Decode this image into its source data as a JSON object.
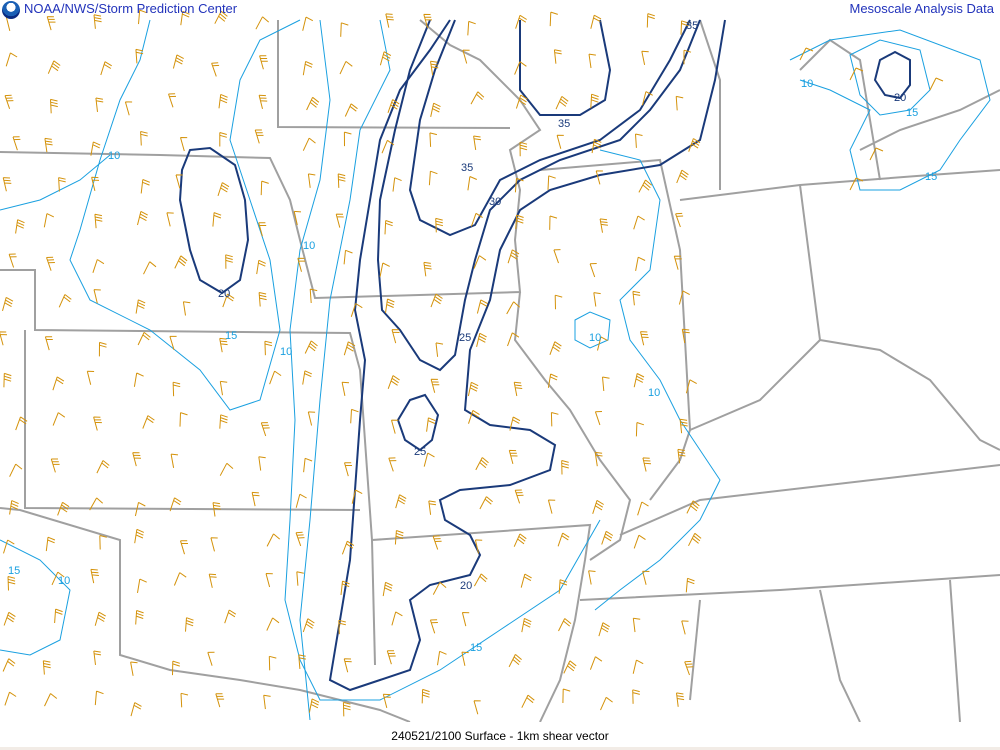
{
  "header": {
    "left_title": "NOAA/NWS/Storm Prediction Center",
    "right_title": "Mesoscale Analysis Data",
    "logo_icon": "noaa-logo-icon"
  },
  "footer": {
    "caption": "240521/2100 Surface - 1km shear vector"
  },
  "colors": {
    "strong_contour": "#1a3a7a",
    "weak_contour": "#1aa0e0",
    "barb": "#d4920a",
    "border": "#a0a0a0"
  },
  "contour_labels": {
    "strong": [
      "35",
      "35",
      "35",
      "30",
      "25",
      "25",
      "20",
      "20",
      "20"
    ],
    "weak": [
      "10",
      "10",
      "15",
      "10",
      "10",
      "10",
      "15",
      "15",
      "10",
      "10",
      "15",
      "15"
    ]
  }
}
